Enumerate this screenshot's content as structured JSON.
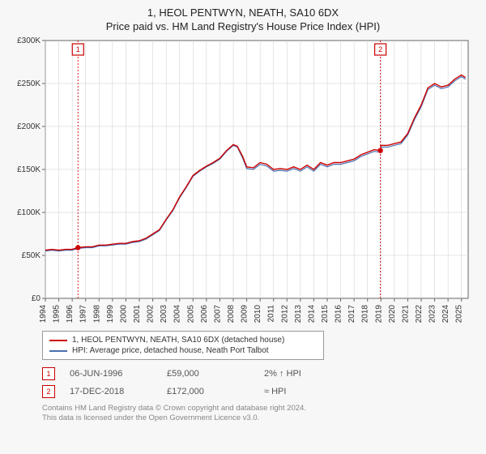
{
  "title_line1": "1, HEOL PENTWYN, NEATH, SA10 6DX",
  "title_line2": "Price paid vs. HM Land Registry's House Price Index (HPI)",
  "chart": {
    "type": "line",
    "background_color": "#f7f7f7",
    "plot_background": "#ffffff",
    "grid_color": "#cccccc",
    "axis_color": "#666666",
    "x_min": 1994,
    "x_max": 2025.5,
    "x_tick_start": 1994,
    "x_tick_end": 2025,
    "x_tick_step": 1,
    "y_min": 0,
    "y_max": 300000,
    "y_tick_step": 50000,
    "y_tick_labels": [
      "£0",
      "£50K",
      "£100K",
      "£150K",
      "£200K",
      "£250K",
      "£300K"
    ],
    "tick_font_size": 10,
    "series": [
      {
        "name": "address",
        "label": "1, HEOL PENTWYN, NEATH, SA10 6DX (detached house)",
        "color": "#cc0000",
        "line_width": 1.4,
        "data": [
          [
            1994.0,
            56000
          ],
          [
            1994.5,
            57000
          ],
          [
            1995.0,
            56000
          ],
          [
            1995.5,
            57000
          ],
          [
            1996.0,
            57000
          ],
          [
            1996.4,
            59000
          ],
          [
            1997.0,
            60000
          ],
          [
            1997.5,
            60000
          ],
          [
            1998.0,
            62000
          ],
          [
            1998.5,
            62000
          ],
          [
            1999.0,
            63000
          ],
          [
            1999.5,
            64000
          ],
          [
            2000.0,
            64000
          ],
          [
            2000.5,
            66000
          ],
          [
            2001.0,
            67000
          ],
          [
            2001.5,
            70000
          ],
          [
            2002.0,
            75000
          ],
          [
            2002.5,
            80000
          ],
          [
            2003.0,
            92000
          ],
          [
            2003.5,
            103000
          ],
          [
            2004.0,
            118000
          ],
          [
            2004.5,
            130000
          ],
          [
            2005.0,
            143000
          ],
          [
            2005.5,
            149000
          ],
          [
            2006.0,
            154000
          ],
          [
            2006.5,
            158000
          ],
          [
            2007.0,
            163000
          ],
          [
            2007.5,
            172000
          ],
          [
            2008.0,
            179000
          ],
          [
            2008.3,
            177000
          ],
          [
            2008.7,
            165000
          ],
          [
            2009.0,
            153000
          ],
          [
            2009.5,
            152000
          ],
          [
            2010.0,
            158000
          ],
          [
            2010.5,
            156000
          ],
          [
            2011.0,
            150000
          ],
          [
            2011.5,
            151000
          ],
          [
            2012.0,
            150000
          ],
          [
            2012.5,
            153000
          ],
          [
            2013.0,
            150000
          ],
          [
            2013.5,
            155000
          ],
          [
            2014.0,
            150000
          ],
          [
            2014.5,
            158000
          ],
          [
            2015.0,
            155000
          ],
          [
            2015.5,
            158000
          ],
          [
            2016.0,
            158000
          ],
          [
            2016.5,
            160000
          ],
          [
            2017.0,
            162000
          ],
          [
            2017.5,
            167000
          ],
          [
            2018.0,
            170000
          ],
          [
            2018.5,
            173000
          ],
          [
            2018.96,
            172000
          ],
          [
            2019.0,
            178000
          ],
          [
            2019.5,
            178000
          ],
          [
            2020.0,
            180000
          ],
          [
            2020.5,
            182000
          ],
          [
            2021.0,
            192000
          ],
          [
            2021.5,
            210000
          ],
          [
            2022.0,
            225000
          ],
          [
            2022.5,
            245000
          ],
          [
            2023.0,
            250000
          ],
          [
            2023.5,
            246000
          ],
          [
            2024.0,
            248000
          ],
          [
            2024.5,
            255000
          ],
          [
            2025.0,
            260000
          ],
          [
            2025.3,
            257000
          ]
        ]
      },
      {
        "name": "hpi",
        "label": "HPI: Average price, detached house, Neath Port Talbot",
        "color": "#4a6fb0",
        "line_width": 1.2,
        "data": [
          [
            1994.0,
            55000
          ],
          [
            1994.5,
            56000
          ],
          [
            1995.0,
            55000
          ],
          [
            1995.5,
            56000
          ],
          [
            1996.0,
            56000
          ],
          [
            1996.4,
            58000
          ],
          [
            1997.0,
            59000
          ],
          [
            1997.5,
            59000
          ],
          [
            1998.0,
            61000
          ],
          [
            1998.5,
            61000
          ],
          [
            1999.0,
            62000
          ],
          [
            1999.5,
            63000
          ],
          [
            2000.0,
            63000
          ],
          [
            2000.5,
            65000
          ],
          [
            2001.0,
            66000
          ],
          [
            2001.5,
            69000
          ],
          [
            2002.0,
            74000
          ],
          [
            2002.5,
            79000
          ],
          [
            2003.0,
            91000
          ],
          [
            2003.5,
            102000
          ],
          [
            2004.0,
            117000
          ],
          [
            2004.5,
            129000
          ],
          [
            2005.0,
            142000
          ],
          [
            2005.5,
            148000
          ],
          [
            2006.0,
            153000
          ],
          [
            2006.5,
            157000
          ],
          [
            2007.0,
            162000
          ],
          [
            2007.5,
            171000
          ],
          [
            2008.0,
            178000
          ],
          [
            2008.3,
            176000
          ],
          [
            2008.7,
            163000
          ],
          [
            2009.0,
            151000
          ],
          [
            2009.5,
            150000
          ],
          [
            2010.0,
            156000
          ],
          [
            2010.5,
            154000
          ],
          [
            2011.0,
            148000
          ],
          [
            2011.5,
            149000
          ],
          [
            2012.0,
            148000
          ],
          [
            2012.5,
            151000
          ],
          [
            2013.0,
            148000
          ],
          [
            2013.5,
            153000
          ],
          [
            2014.0,
            148000
          ],
          [
            2014.5,
            156000
          ],
          [
            2015.0,
            153000
          ],
          [
            2015.5,
            156000
          ],
          [
            2016.0,
            156000
          ],
          [
            2016.5,
            158000
          ],
          [
            2017.0,
            160000
          ],
          [
            2017.5,
            165000
          ],
          [
            2018.0,
            168000
          ],
          [
            2018.5,
            171000
          ],
          [
            2018.96,
            170000
          ],
          [
            2019.0,
            176000
          ],
          [
            2019.5,
            176000
          ],
          [
            2020.0,
            178000
          ],
          [
            2020.5,
            180000
          ],
          [
            2021.0,
            190000
          ],
          [
            2021.5,
            208000
          ],
          [
            2022.0,
            223000
          ],
          [
            2022.5,
            243000
          ],
          [
            2023.0,
            248000
          ],
          [
            2023.5,
            244000
          ],
          [
            2024.0,
            246000
          ],
          [
            2024.5,
            253000
          ],
          [
            2025.0,
            258000
          ],
          [
            2025.3,
            255000
          ]
        ]
      }
    ],
    "markers": [
      {
        "id": "1",
        "x": 1996.43,
        "y": 59000,
        "label_y_top": true
      },
      {
        "id": "2",
        "x": 2018.96,
        "y": 172000,
        "label_y_top": true
      }
    ],
    "marker_line_color": "#cc0000",
    "marker_dot_color": "#cc0000"
  },
  "legend": {
    "items": [
      {
        "color": "#cc0000",
        "label": "1, HEOL PENTWYN, NEATH, SA10 6DX (detached house)"
      },
      {
        "color": "#4a6fb0",
        "label": "HPI: Average price, detached house, Neath Port Talbot"
      }
    ]
  },
  "events": [
    {
      "badge": "1",
      "date": "06-JUN-1996",
      "price": "£59,000",
      "delta": "2% ↑ HPI"
    },
    {
      "badge": "2",
      "date": "17-DEC-2018",
      "price": "£172,000",
      "delta": "≈ HPI"
    }
  ],
  "footer_line1": "Contains HM Land Registry data © Crown copyright and database right 2024.",
  "footer_line2": "This data is licensed under the Open Government Licence v3.0."
}
